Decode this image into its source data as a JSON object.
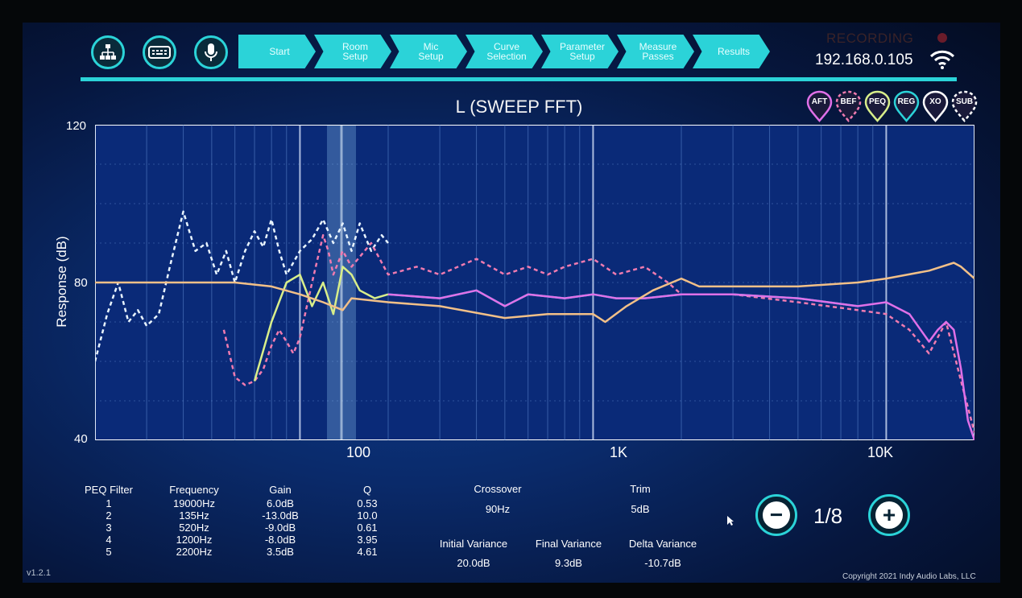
{
  "nav": {
    "icons": [
      "network-icon",
      "keyboard-icon",
      "microphone-icon"
    ],
    "steps": [
      {
        "label": "Start"
      },
      {
        "label": "Room\nSetup"
      },
      {
        "label": "Mic\nSetup"
      },
      {
        "label": "Curve\nSelection"
      },
      {
        "label": "Parameter\nSetup"
      },
      {
        "label": "Measure\nPasses"
      },
      {
        "label": "Results"
      }
    ]
  },
  "status": {
    "recording": "RECORDING",
    "ip": "192.168.0.105"
  },
  "chart": {
    "title": "L (SWEEP FFT)",
    "ylabel": "Response (dB)",
    "y_ticks": [
      "120",
      "80",
      "40"
    ],
    "x_ticks": [
      "100",
      "1K",
      "10K"
    ],
    "legend": [
      "AFT",
      "BEF",
      "PEQ",
      "REG",
      "XO",
      "SUB"
    ]
  },
  "chart_data": {
    "type": "line",
    "title": "L (SWEEP FFT)",
    "xlabel": "",
    "ylabel": "Response (dB)",
    "x_scale": "log",
    "xlim": [
      20,
      20000
    ],
    "ylim": [
      40,
      120
    ],
    "grid": true,
    "legend": "top-right",
    "series": [
      {
        "name": "SUB",
        "style": "dashed",
        "color": "#e8f4ff",
        "x": [
          20,
          22,
          24,
          26,
          28,
          30,
          33,
          36,
          40,
          44,
          48,
          52,
          56,
          60,
          65,
          70,
          75,
          80,
          85,
          90,
          100,
          110,
          120,
          130,
          140,
          150,
          160,
          175,
          190,
          200
        ],
        "y": [
          60,
          72,
          80,
          70,
          73,
          69,
          72,
          84,
          98,
          88,
          90,
          82,
          88,
          80,
          88,
          93,
          89,
          96,
          88,
          82,
          88,
          91,
          96,
          90,
          95,
          88,
          95,
          88,
          92,
          90
        ]
      },
      {
        "name": "BEF",
        "style": "dashed",
        "color": "#f07bb0",
        "x": [
          55,
          60,
          65,
          70,
          75,
          80,
          85,
          90,
          95,
          100,
          110,
          120,
          125,
          130,
          140,
          150,
          175,
          200,
          250,
          300,
          400,
          500,
          600,
          700,
          800,
          1000,
          1200,
          1500,
          1800,
          2000,
          3000,
          5000,
          8000,
          10000,
          12000,
          14000,
          16000,
          18000,
          20000
        ],
        "y": [
          68,
          56,
          54,
          55,
          58,
          64,
          68,
          65,
          62,
          66,
          80,
          92,
          88,
          82,
          88,
          84,
          90,
          82,
          84,
          82,
          86,
          82,
          84,
          82,
          84,
          86,
          82,
          84,
          80,
          77,
          77,
          75,
          73,
          72,
          68,
          62,
          70,
          55,
          42
        ]
      },
      {
        "name": "PEQ",
        "style": "solid",
        "color": "#d8ee8a",
        "x": [
          70,
          80,
          90,
          100,
          110,
          120,
          130,
          140,
          150,
          160,
          180,
          200
        ],
        "y": [
          55,
          70,
          80,
          82,
          74,
          80,
          72,
          84,
          82,
          78,
          76,
          77
        ]
      },
      {
        "name": "REG",
        "style": "solid",
        "color": "#2bd3d8",
        "x": [
          200,
          300,
          400,
          500,
          600,
          800,
          1000,
          1200,
          1500,
          2000,
          3000,
          5000,
          8000
        ],
        "y": [
          77,
          76,
          78,
          74,
          77,
          76,
          77,
          76,
          76,
          77,
          77,
          76,
          74
        ]
      },
      {
        "name": "AFT",
        "style": "solid",
        "color": "#e070e8",
        "x": [
          200,
          300,
          400,
          500,
          600,
          800,
          1000,
          1200,
          1500,
          2000,
          3000,
          5000,
          8000,
          10000,
          12000,
          14000,
          15000,
          16000,
          17000,
          18000,
          19000,
          20000
        ],
        "y": [
          77,
          76,
          78,
          74,
          77,
          76,
          77,
          76,
          76,
          77,
          77,
          76,
          74,
          75,
          72,
          65,
          68,
          70,
          68,
          58,
          45,
          40
        ]
      },
      {
        "name": "XO",
        "style": "solid",
        "color": "#f2c088",
        "x": [
          20,
          40,
          60,
          80,
          100,
          120,
          140,
          150,
          200,
          300,
          500,
          700,
          1000,
          1100,
          1300,
          1600,
          2000,
          2300,
          3000,
          5000,
          8000,
          10000,
          14000,
          17000,
          18000,
          20000
        ],
        "y": [
          80,
          80,
          80,
          79,
          77,
          75,
          73,
          76,
          75,
          74,
          71,
          72,
          72,
          70,
          74,
          78,
          81,
          79,
          79,
          79,
          80,
          81,
          83,
          85,
          84,
          81
        ]
      }
    ]
  },
  "peq": {
    "headers": {
      "filter": "PEQ Filter",
      "frequency": "Frequency",
      "gain": "Gain",
      "q": "Q"
    },
    "rows": [
      {
        "filter": "1",
        "frequency": "19000Hz",
        "gain": "6.0dB",
        "q": "0.53"
      },
      {
        "filter": "2",
        "frequency": "135Hz",
        "gain": "-13.0dB",
        "q": "10.0"
      },
      {
        "filter": "3",
        "frequency": "520Hz",
        "gain": "-9.0dB",
        "q": "0.61"
      },
      {
        "filter": "4",
        "frequency": "1200Hz",
        "gain": "-8.0dB",
        "q": "3.95"
      },
      {
        "filter": "5",
        "frequency": "2200Hz",
        "gain": "3.5dB",
        "q": "4.61"
      }
    ]
  },
  "crossover": {
    "label": "Crossover",
    "value": "90Hz"
  },
  "trim": {
    "label": "Trim",
    "value": "5dB"
  },
  "variance": {
    "initial_label": "Initial Variance",
    "initial_value": "20.0dB",
    "final_label": "Final Variance",
    "final_value": "9.3dB",
    "delta_label": "Delta Variance",
    "delta_value": "-10.7dB"
  },
  "pager": {
    "minus": "−",
    "plus": "+",
    "page": "1/8"
  },
  "footer": {
    "version": "v1.2.1",
    "copyright": "Copyright 2021 Indy Audio Labs, LLC"
  }
}
